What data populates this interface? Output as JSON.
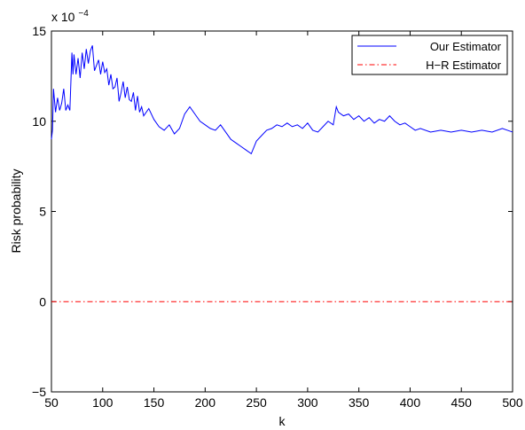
{
  "chart_data": {
    "type": "line",
    "xlabel": "k",
    "ylabel": "Risk probability",
    "y_multiplier_label": "x 10",
    "y_multiplier_exponent": "−4",
    "xlim": [
      50,
      500
    ],
    "ylim": [
      -5,
      15
    ],
    "x_ticks": [
      50,
      100,
      150,
      200,
      250,
      300,
      350,
      400,
      450,
      500
    ],
    "x_tick_labels": [
      "50",
      "100",
      "150",
      "200",
      "250",
      "300",
      "350",
      "400",
      "450",
      "500"
    ],
    "y_ticks": [
      -5,
      0,
      5,
      10,
      15
    ],
    "y_tick_labels": [
      "−5",
      "0",
      "5",
      "10",
      "15"
    ],
    "grid": false,
    "legend_position": "top-right",
    "series": [
      {
        "name": "Our Estimator",
        "color": "#0000ff",
        "line_style": "solid",
        "x": [
          50,
          51,
          52,
          54,
          56,
          58,
          60,
          62,
          64,
          66,
          68,
          70,
          71,
          72,
          74,
          76,
          78,
          80,
          82,
          84,
          86,
          88,
          90,
          92,
          94,
          96,
          98,
          100,
          102,
          104,
          106,
          108,
          110,
          112,
          114,
          116,
          118,
          120,
          122,
          124,
          126,
          128,
          130,
          132,
          134,
          136,
          138,
          140,
          145,
          150,
          155,
          160,
          165,
          170,
          175,
          180,
          185,
          190,
          195,
          200,
          205,
          210,
          215,
          220,
          225,
          230,
          235,
          240,
          245,
          250,
          255,
          260,
          265,
          270,
          275,
          280,
          285,
          290,
          295,
          300,
          305,
          310,
          315,
          320,
          325,
          328,
          330,
          335,
          340,
          345,
          350,
          355,
          360,
          365,
          370,
          375,
          380,
          385,
          390,
          395,
          400,
          405,
          410,
          420,
          430,
          440,
          450,
          460,
          470,
          480,
          490,
          495,
          500
        ],
        "values": [
          9.0,
          9.5,
          11.8,
          10.5,
          11.3,
          10.6,
          11.0,
          11.8,
          10.6,
          10.9,
          10.6,
          13.8,
          12.6,
          13.7,
          12.6,
          13.5,
          12.4,
          13.8,
          12.9,
          14.0,
          13.2,
          13.9,
          14.2,
          12.8,
          13.1,
          13.4,
          12.6,
          13.3,
          12.7,
          12.9,
          12.0,
          12.6,
          11.8,
          11.9,
          12.4,
          11.1,
          11.6,
          12.2,
          11.3,
          11.9,
          11.2,
          11.1,
          11.6,
          10.6,
          11.4,
          10.5,
          10.8,
          10.3,
          10.7,
          10.1,
          9.7,
          9.5,
          9.8,
          9.3,
          9.6,
          10.4,
          10.8,
          10.4,
          10.0,
          9.8,
          9.6,
          9.5,
          9.8,
          9.4,
          9.0,
          8.8,
          8.6,
          8.4,
          8.2,
          8.9,
          9.2,
          9.5,
          9.6,
          9.8,
          9.7,
          9.9,
          9.7,
          9.8,
          9.6,
          9.9,
          9.5,
          9.4,
          9.7,
          10.0,
          9.8,
          10.8,
          10.5,
          10.3,
          10.4,
          10.1,
          10.3,
          10.0,
          10.2,
          9.9,
          10.1,
          10.0,
          10.3,
          10.0,
          9.8,
          9.9,
          9.7,
          9.5,
          9.6,
          9.4,
          9.5,
          9.4,
          9.5,
          9.4,
          9.5,
          9.4,
          9.6,
          9.5,
          9.4
        ]
      },
      {
        "name": "H−R Estimator",
        "color": "#ff0000",
        "line_style": "dash-dot",
        "x": [
          50,
          500
        ],
        "values": [
          0,
          0
        ]
      }
    ]
  }
}
